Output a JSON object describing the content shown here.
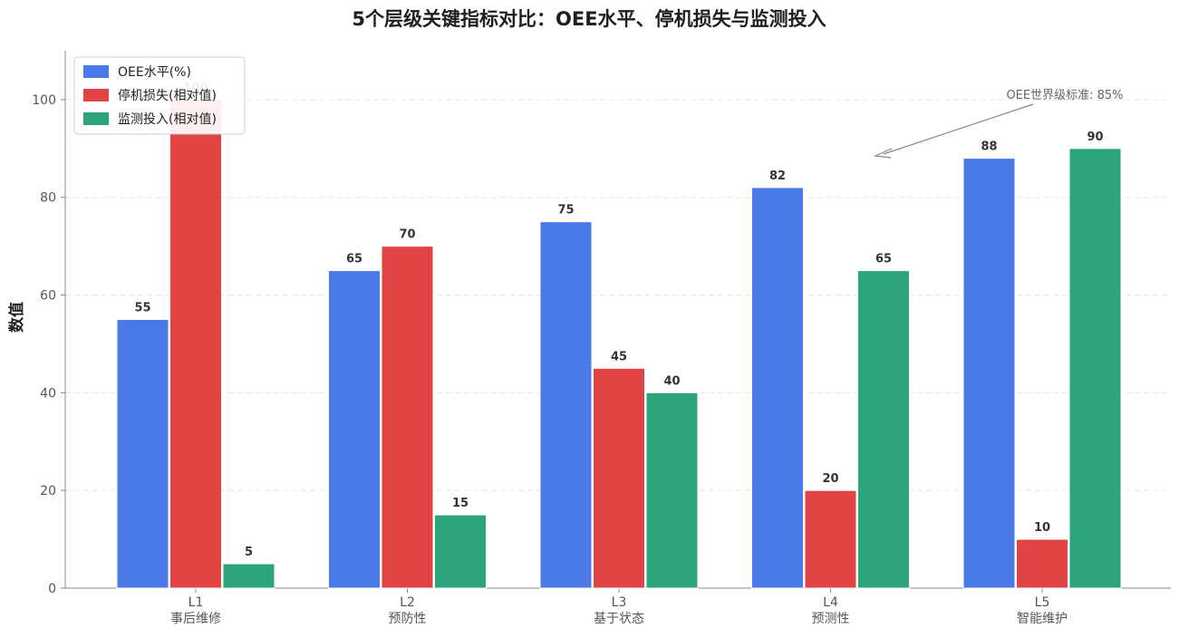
{
  "chart_data": {
    "type": "bar",
    "title": "5个层级关键指标对比：OEE水平、停机损失与监测投入",
    "xlabel": "",
    "ylabel": "数值",
    "categories": [
      "L1\n事后维修",
      "L2\n预防性",
      "L3\n基于状态",
      "L4\n预测性",
      "L5\n智能维护"
    ],
    "series": [
      {
        "name": "OEE水平(%)",
        "values": [
          55,
          65,
          75,
          82,
          88
        ],
        "color": "#4a7ae8"
      },
      {
        "name": "停机损失(相对值)",
        "values": [
          100,
          70,
          45,
          20,
          10
        ],
        "color": "#e04444"
      },
      {
        "name": "监测投入(相对值)",
        "values": [
          5,
          15,
          40,
          65,
          90
        ],
        "color": "#2ca57f"
      }
    ],
    "ylim": [
      0,
      110
    ],
    "yticks": [
      0,
      20,
      40,
      60,
      80,
      100
    ],
    "grid": true,
    "legend": "top-left",
    "annotation": {
      "text": "OEE世界级标准: 85%",
      "target_category_index": 3,
      "target_y": 88
    }
  }
}
